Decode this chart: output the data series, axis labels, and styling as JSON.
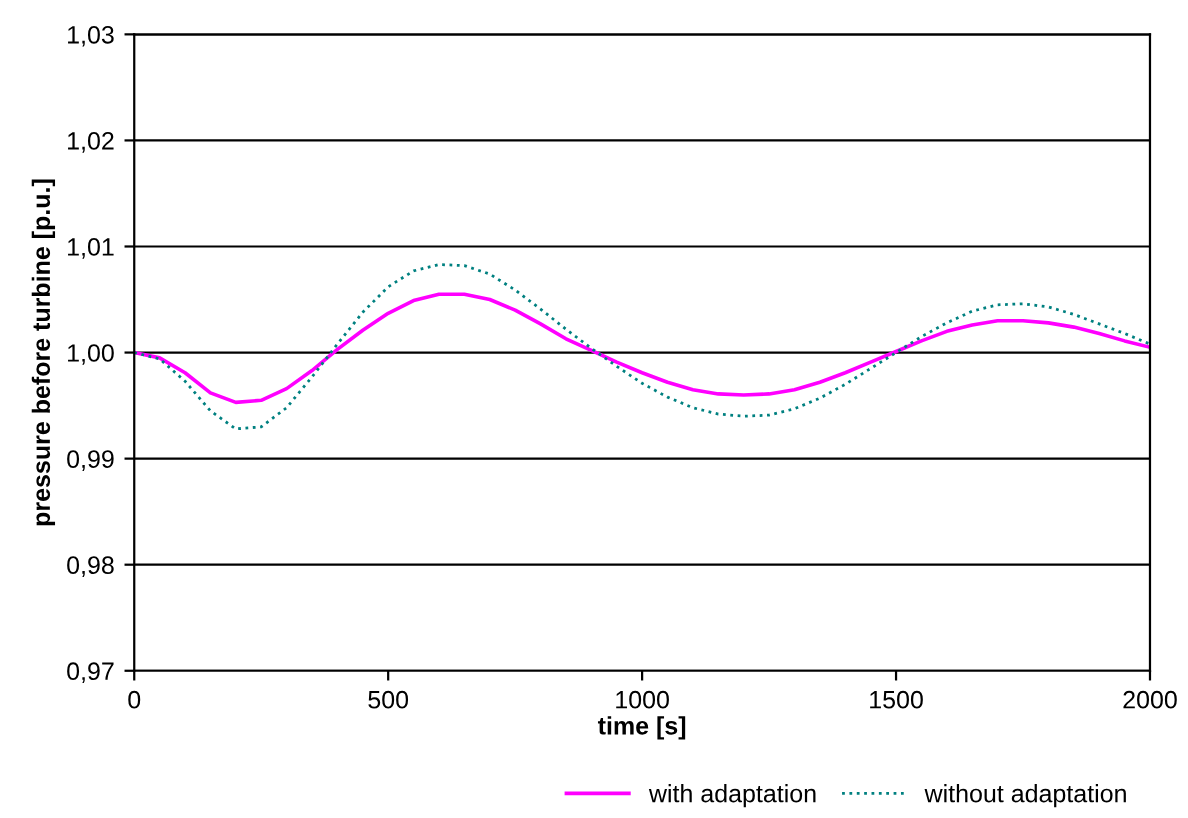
{
  "chart_data": {
    "type": "line",
    "xlabel": "time [s]",
    "ylabel": "pressure before turbine [p.u.]",
    "x": [
      0,
      50,
      100,
      150,
      200,
      250,
      300,
      350,
      400,
      450,
      500,
      550,
      600,
      650,
      700,
      750,
      800,
      850,
      900,
      950,
      1000,
      1050,
      1100,
      1150,
      1200,
      1250,
      1300,
      1350,
      1400,
      1450,
      1500,
      1550,
      1600,
      1650,
      1700,
      1750,
      1800,
      1850,
      1900,
      1950,
      2000
    ],
    "series": [
      {
        "name": "with adaptation",
        "color": "#ff00ff",
        "line_style": "solid",
        "values": [
          1.0,
          0.9995,
          0.9981,
          0.9962,
          0.9953,
          0.9955,
          0.9966,
          0.9983,
          1.0003,
          1.0021,
          1.0037,
          1.0049,
          1.0055,
          1.0055,
          1.005,
          1.004,
          1.0027,
          1.0013,
          1.0002,
          0.9991,
          0.9981,
          0.9972,
          0.9965,
          0.9961,
          0.996,
          0.9961,
          0.9965,
          0.9972,
          0.9981,
          0.9991,
          1.0001,
          1.0011,
          1.002,
          1.0026,
          1.003,
          1.003,
          1.0028,
          1.0024,
          1.0018,
          1.0011,
          1.0005
        ]
      },
      {
        "name": "without adaptation",
        "color": "#008080",
        "line_style": "dotted",
        "values": [
          1.0,
          0.9994,
          0.9973,
          0.9945,
          0.9928,
          0.993,
          0.9948,
          0.9977,
          1.0008,
          1.0038,
          1.0062,
          1.0077,
          1.0083,
          1.0082,
          1.0074,
          1.0059,
          1.0041,
          1.0022,
          1.0004,
          0.9987,
          0.9971,
          0.9958,
          0.9948,
          0.9942,
          0.994,
          0.9941,
          0.9947,
          0.9957,
          0.997,
          0.9985,
          1.0,
          1.0015,
          1.0028,
          1.0039,
          1.0045,
          1.0046,
          1.0043,
          1.0036,
          1.0027,
          1.0018,
          1.0008
        ]
      }
    ],
    "xlim": [
      0,
      2000
    ],
    "xticks": [
      0,
      500,
      1000,
      1500,
      2000
    ],
    "ylim": [
      0.97,
      1.03
    ],
    "yticks": [
      {
        "value": 0.97,
        "label": "0,97"
      },
      {
        "value": 0.98,
        "label": "0,98"
      },
      {
        "value": 0.99,
        "label": "0,99"
      },
      {
        "value": 1.0,
        "label": "1,00"
      },
      {
        "value": 1.01,
        "label": "1,01"
      },
      {
        "value": 1.02,
        "label": "1,02"
      },
      {
        "value": 1.03,
        "label": "1,03"
      }
    ],
    "grid": "y",
    "legend": "bottom right",
    "marker": "none"
  }
}
